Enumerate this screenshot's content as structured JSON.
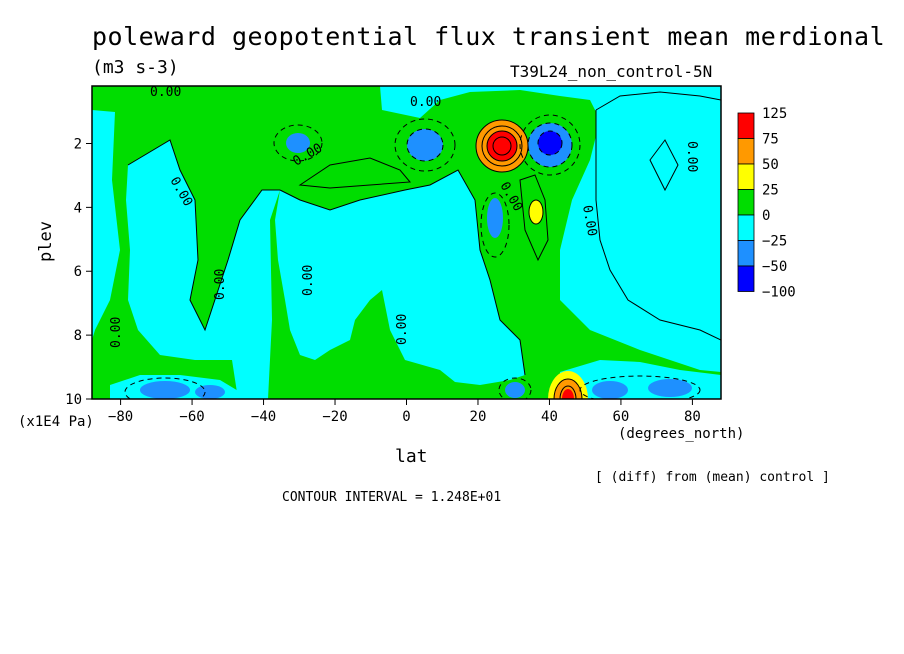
{
  "title": "poleward geopotential flux transient mean merdional",
  "units": "(m3 s-3)",
  "run_label": "T39L24_non_control-5N",
  "y_unit": "(x1E4 Pa)",
  "diff_note": "[ (diff) from (mean) control ]",
  "contour_note": "CONTOUR INTERVAL = 1.248E+01",
  "colors": {
    "pos125": "#ff0000",
    "pos75": "#ff9900",
    "pos50": "#ffff00",
    "pos25": "#00dd00",
    "zero": "#00ffff",
    "neg25": "#1e90ff",
    "neg50": "#0000ff",
    "frame": "#000000"
  },
  "chart_data": {
    "type": "heatmap",
    "title": "poleward geopotential flux transient mean merdional",
    "xlabel": "lat",
    "xunit": "(degrees_north)",
    "ylabel": "plev",
    "yunit": "(x1E4 Pa)",
    "xlim": [
      -88,
      88
    ],
    "ylim": [
      0.2,
      10
    ],
    "y_inverted": true,
    "xticks": [
      -80,
      -60,
      -40,
      -20,
      0,
      20,
      40,
      60,
      80
    ],
    "yticks": [
      2,
      4,
      6,
      8,
      10
    ],
    "contour_interval": 12.48,
    "contour_labels": [
      "0.00",
      "0.00",
      "0.00",
      "0.00",
      "0.00",
      "0.00",
      "0.00",
      "0.00",
      "0.00",
      "0.00",
      "0.00"
    ],
    "legend": {
      "placement": "right",
      "levels": [
        "125",
        "75",
        "50",
        "25",
        "0",
        "-25",
        "-50",
        "-100"
      ],
      "fill_colors": [
        "#ff0000",
        "#ff9900",
        "#ffff00",
        "#00dd00",
        "#00ffff",
        "#1e90ff",
        "#0000ff"
      ]
    },
    "features": [
      {
        "lat": 27,
        "plev": 2.0,
        "value": 125
      },
      {
        "lat": 42,
        "plev": 2.0,
        "value": -75
      },
      {
        "lat": 36,
        "plev": 4.0,
        "value": 35
      },
      {
        "lat": 45,
        "plev": 9.8,
        "value": 110
      },
      {
        "lat": 5,
        "plev": 2.1,
        "value": -30
      },
      {
        "lat": -30,
        "plev": 2.0,
        "value": -28
      },
      {
        "lat": -70,
        "plev": 9.8,
        "value": -35
      },
      {
        "lat": 57,
        "plev": 9.8,
        "value": -35
      },
      {
        "lat": 75,
        "plev": 9.8,
        "value": -35
      }
    ]
  }
}
